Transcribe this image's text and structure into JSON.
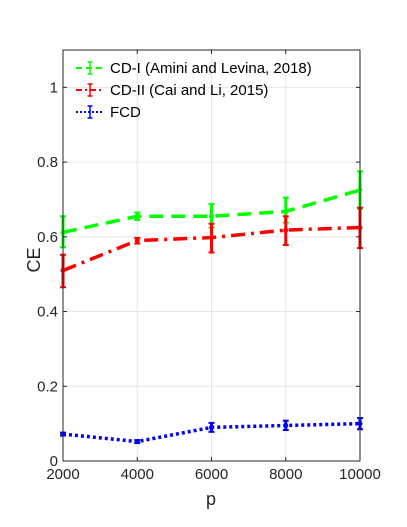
{
  "chart_data": {
    "type": "line",
    "xlabel": "p",
    "ylabel": "CE",
    "x": [
      2000,
      4000,
      6000,
      8000,
      10000
    ],
    "xlim": [
      2000,
      10000
    ],
    "ylim": [
      0,
      1.1
    ],
    "xticks": [
      2000,
      4000,
      6000,
      8000,
      10000
    ],
    "yticks": [
      0,
      0.2,
      0.4,
      0.6,
      0.8,
      1
    ],
    "xtick_labels": [
      "2000",
      "4000",
      "6000",
      "8000",
      "10000"
    ],
    "ytick_labels": [
      "0",
      "0.2",
      "0.4",
      "0.6",
      "0.8",
      "1"
    ],
    "grid": true,
    "legend_position": "top-left",
    "series": [
      {
        "name": "CD-I (Amini and Levina, 2018)",
        "color": "#00ff00",
        "line_style": "dashed",
        "values": [
          0.612,
          0.655,
          0.655,
          0.668,
          0.725
        ],
        "lower": [
          0.572,
          0.645,
          0.625,
          0.638,
          0.675
        ],
        "upper": [
          0.655,
          0.665,
          0.688,
          0.705,
          0.775
        ]
      },
      {
        "name": "CD-II (Cai and Li, 2015)",
        "color": "#ff0000",
        "line_style": "dashdot",
        "values": [
          0.51,
          0.59,
          0.598,
          0.618,
          0.625
        ],
        "lower": [
          0.465,
          0.582,
          0.558,
          0.578,
          0.57
        ],
        "upper": [
          0.552,
          0.597,
          0.635,
          0.655,
          0.678
        ]
      },
      {
        "name": "FCD",
        "color": "#0000ff",
        "line_style": "dotted",
        "values": [
          0.072,
          0.052,
          0.09,
          0.095,
          0.1
        ],
        "lower": [
          0.068,
          0.048,
          0.078,
          0.083,
          0.085
        ],
        "upper": [
          0.076,
          0.056,
          0.102,
          0.108,
          0.115
        ]
      }
    ]
  }
}
